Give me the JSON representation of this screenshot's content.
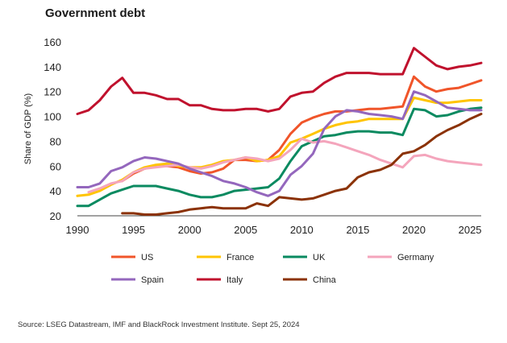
{
  "title": "Government debt",
  "source": "Source: LSEG Datastream, IMF and BlackRock Investment Institute. Sept 25, 2024",
  "chart_data": {
    "type": "line",
    "title": "Government debt",
    "xlabel": "",
    "ylabel": "Share of GDP (%)",
    "xlim": [
      1990,
      2026
    ],
    "ylim": [
      20,
      160
    ],
    "xticks": [
      1990,
      1995,
      2000,
      2005,
      2010,
      2015,
      2020,
      2025
    ],
    "yticks": [
      20,
      40,
      60,
      80,
      100,
      120,
      140,
      160
    ],
    "grid": false,
    "legend": "bottom",
    "series": [
      {
        "name": "US",
        "color": "#f0552a",
        "points": [
          [
            1994,
            48
          ],
          [
            1995,
            54
          ],
          [
            1996,
            58
          ],
          [
            1997,
            60
          ],
          [
            1998,
            60
          ],
          [
            1999,
            59
          ],
          [
            2000,
            56
          ],
          [
            2001,
            54
          ],
          [
            2002,
            55
          ],
          [
            2003,
            58
          ],
          [
            2004,
            65
          ],
          [
            2005,
            65
          ],
          [
            2006,
            64
          ],
          [
            2007,
            65
          ],
          [
            2008,
            73
          ],
          [
            2009,
            86
          ],
          [
            2010,
            95
          ],
          [
            2011,
            99
          ],
          [
            2012,
            102
          ],
          [
            2013,
            104
          ],
          [
            2014,
            104
          ],
          [
            2015,
            105
          ],
          [
            2016,
            106
          ],
          [
            2017,
            106
          ],
          [
            2018,
            107
          ],
          [
            2019,
            108
          ],
          [
            2020,
            132
          ],
          [
            2021,
            124
          ],
          [
            2022,
            120
          ],
          [
            2023,
            122
          ],
          [
            2024,
            123
          ],
          [
            2025,
            126
          ],
          [
            2026,
            129
          ]
        ]
      },
      {
        "name": "France",
        "color": "#ffc400",
        "points": [
          [
            1990,
            36
          ],
          [
            1991,
            37
          ],
          [
            1992,
            40
          ],
          [
            1993,
            45
          ],
          [
            1994,
            49
          ],
          [
            1995,
            55
          ],
          [
            1996,
            59
          ],
          [
            1997,
            61
          ],
          [
            1998,
            62
          ],
          [
            1999,
            60
          ],
          [
            2000,
            59
          ],
          [
            2001,
            59
          ],
          [
            2002,
            61
          ],
          [
            2003,
            64
          ],
          [
            2004,
            65
          ],
          [
            2005,
            67
          ],
          [
            2006,
            64
          ],
          [
            2007,
            65
          ],
          [
            2008,
            68
          ],
          [
            2009,
            79
          ],
          [
            2010,
            82
          ],
          [
            2011,
            86
          ],
          [
            2012,
            90
          ],
          [
            2013,
            93
          ],
          [
            2014,
            95
          ],
          [
            2015,
            96
          ],
          [
            2016,
            98
          ],
          [
            2017,
            98
          ],
          [
            2018,
            98
          ],
          [
            2019,
            98
          ],
          [
            2020,
            115
          ],
          [
            2021,
            113
          ],
          [
            2022,
            111
          ],
          [
            2023,
            111
          ],
          [
            2024,
            112
          ],
          [
            2025,
            113
          ],
          [
            2026,
            113
          ]
        ]
      },
      {
        "name": "UK",
        "color": "#0a8a60",
        "points": [
          [
            1990,
            28
          ],
          [
            1991,
            28
          ],
          [
            1992,
            33
          ],
          [
            1993,
            38
          ],
          [
            1994,
            41
          ],
          [
            1995,
            44
          ],
          [
            1996,
            44
          ],
          [
            1997,
            44
          ],
          [
            1998,
            42
          ],
          [
            1999,
            40
          ],
          [
            2000,
            37
          ],
          [
            2001,
            35
          ],
          [
            2002,
            35
          ],
          [
            2003,
            37
          ],
          [
            2004,
            40
          ],
          [
            2005,
            41
          ],
          [
            2006,
            42
          ],
          [
            2007,
            43
          ],
          [
            2008,
            50
          ],
          [
            2009,
            64
          ],
          [
            2010,
            76
          ],
          [
            2011,
            80
          ],
          [
            2012,
            84
          ],
          [
            2013,
            85
          ],
          [
            2014,
            87
          ],
          [
            2015,
            88
          ],
          [
            2016,
            88
          ],
          [
            2017,
            87
          ],
          [
            2018,
            87
          ],
          [
            2019,
            85
          ],
          [
            2020,
            106
          ],
          [
            2021,
            105
          ],
          [
            2022,
            100
          ],
          [
            2023,
            101
          ],
          [
            2024,
            104
          ],
          [
            2025,
            106
          ],
          [
            2026,
            107
          ]
        ]
      },
      {
        "name": "Germany",
        "color": "#f4a5bc",
        "points": [
          [
            1991,
            39
          ],
          [
            1992,
            42
          ],
          [
            1993,
            46
          ],
          [
            1994,
            48
          ],
          [
            1995,
            55
          ],
          [
            1996,
            58
          ],
          [
            1997,
            59
          ],
          [
            1998,
            60
          ],
          [
            1999,
            61
          ],
          [
            2000,
            59
          ],
          [
            2001,
            58
          ],
          [
            2002,
            60
          ],
          [
            2003,
            63
          ],
          [
            2004,
            65
          ],
          [
            2005,
            67
          ],
          [
            2006,
            66
          ],
          [
            2007,
            64
          ],
          [
            2008,
            66
          ],
          [
            2009,
            73
          ],
          [
            2010,
            82
          ],
          [
            2011,
            79
          ],
          [
            2012,
            80
          ],
          [
            2013,
            78
          ],
          [
            2014,
            75
          ],
          [
            2015,
            72
          ],
          [
            2016,
            69
          ],
          [
            2017,
            65
          ],
          [
            2018,
            62
          ],
          [
            2019,
            59
          ],
          [
            2020,
            68
          ],
          [
            2021,
            69
          ],
          [
            2022,
            66
          ],
          [
            2023,
            64
          ],
          [
            2024,
            63
          ],
          [
            2025,
            62
          ],
          [
            2026,
            61
          ]
        ]
      },
      {
        "name": "Spain",
        "color": "#9467bd",
        "points": [
          [
            1990,
            43
          ],
          [
            1991,
            43
          ],
          [
            1992,
            46
          ],
          [
            1993,
            56
          ],
          [
            1994,
            59
          ],
          [
            1995,
            64
          ],
          [
            1996,
            67
          ],
          [
            1997,
            66
          ],
          [
            1998,
            64
          ],
          [
            1999,
            62
          ],
          [
            2000,
            58
          ],
          [
            2001,
            55
          ],
          [
            2002,
            52
          ],
          [
            2003,
            48
          ],
          [
            2004,
            46
          ],
          [
            2005,
            43
          ],
          [
            2006,
            39
          ],
          [
            2007,
            36
          ],
          [
            2008,
            40
          ],
          [
            2009,
            53
          ],
          [
            2010,
            60
          ],
          [
            2011,
            70
          ],
          [
            2012,
            90
          ],
          [
            2013,
            100
          ],
          [
            2014,
            105
          ],
          [
            2015,
            104
          ],
          [
            2016,
            102
          ],
          [
            2017,
            101
          ],
          [
            2018,
            100
          ],
          [
            2019,
            98
          ],
          [
            2020,
            120
          ],
          [
            2021,
            117
          ],
          [
            2022,
            112
          ],
          [
            2023,
            107
          ],
          [
            2024,
            106
          ],
          [
            2025,
            105
          ],
          [
            2026,
            105
          ]
        ]
      },
      {
        "name": "Italy",
        "color": "#c0112d",
        "points": [
          [
            1990,
            102
          ],
          [
            1991,
            105
          ],
          [
            1992,
            113
          ],
          [
            1993,
            124
          ],
          [
            1994,
            131
          ],
          [
            1995,
            119
          ],
          [
            1996,
            119
          ],
          [
            1997,
            117
          ],
          [
            1998,
            114
          ],
          [
            1999,
            114
          ],
          [
            2000,
            109
          ],
          [
            2001,
            109
          ],
          [
            2002,
            106
          ],
          [
            2003,
            105
          ],
          [
            2004,
            105
          ],
          [
            2005,
            106
          ],
          [
            2006,
            106
          ],
          [
            2007,
            104
          ],
          [
            2008,
            106
          ],
          [
            2009,
            116
          ],
          [
            2010,
            119
          ],
          [
            2011,
            120
          ],
          [
            2012,
            127
          ],
          [
            2013,
            132
          ],
          [
            2014,
            135
          ],
          [
            2015,
            135
          ],
          [
            2016,
            135
          ],
          [
            2017,
            134
          ],
          [
            2018,
            134
          ],
          [
            2019,
            134
          ],
          [
            2020,
            155
          ],
          [
            2021,
            148
          ],
          [
            2022,
            141
          ],
          [
            2023,
            138
          ],
          [
            2024,
            140
          ],
          [
            2025,
            141
          ],
          [
            2026,
            143
          ]
        ]
      },
      {
        "name": "China",
        "color": "#8b3206",
        "points": [
          [
            1994,
            22
          ],
          [
            1995,
            22
          ],
          [
            1996,
            21
          ],
          [
            1997,
            21
          ],
          [
            1998,
            22
          ],
          [
            1999,
            23
          ],
          [
            2000,
            25
          ],
          [
            2001,
            26
          ],
          [
            2002,
            27
          ],
          [
            2003,
            26
          ],
          [
            2004,
            26
          ],
          [
            2005,
            26
          ],
          [
            2006,
            30
          ],
          [
            2007,
            28
          ],
          [
            2008,
            35
          ],
          [
            2009,
            34
          ],
          [
            2010,
            33
          ],
          [
            2011,
            34
          ],
          [
            2012,
            37
          ],
          [
            2013,
            40
          ],
          [
            2014,
            42
          ],
          [
            2015,
            51
          ],
          [
            2016,
            55
          ],
          [
            2017,
            57
          ],
          [
            2018,
            61
          ],
          [
            2019,
            70
          ],
          [
            2020,
            72
          ],
          [
            2021,
            77
          ],
          [
            2022,
            84
          ],
          [
            2023,
            89
          ],
          [
            2024,
            93
          ],
          [
            2025,
            98
          ],
          [
            2026,
            102
          ]
        ]
      }
    ]
  }
}
